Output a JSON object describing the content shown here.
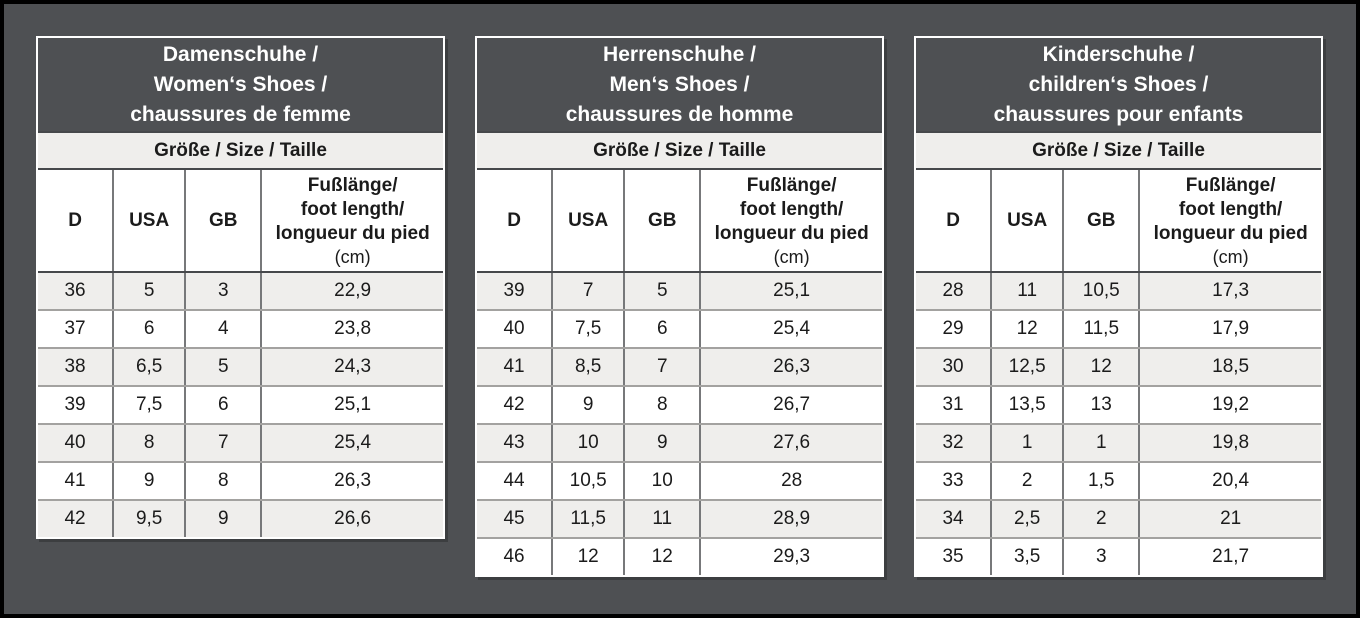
{
  "page": {
    "background_color": "#4e5053",
    "frame_color": "#000000",
    "light_row_color": "#efeeec",
    "white_row_color": "#ffffff",
    "title_text_color": "#ffffff",
    "body_text_color": "#1b1b1b"
  },
  "tables": [
    {
      "id": "women",
      "title_lines": [
        "Damenschuhe /",
        "Women‘s Shoes /",
        "chaussures de femme"
      ],
      "subtitle": "Größe / Size / Taille",
      "col_d": "D",
      "col_usa": "USA",
      "col_gb": "GB",
      "foot_lines": [
        "Fußlänge/",
        "foot length/",
        "longueur du pied"
      ],
      "foot_unit": "(cm)",
      "rows": [
        [
          "36",
          "5",
          "3",
          "22,9"
        ],
        [
          "37",
          "6",
          "4",
          "23,8"
        ],
        [
          "38",
          "6,5",
          "5",
          "24,3"
        ],
        [
          "39",
          "7,5",
          "6",
          "25,1"
        ],
        [
          "40",
          "8",
          "7",
          "25,4"
        ],
        [
          "41",
          "9",
          "8",
          "26,3"
        ],
        [
          "42",
          "9,5",
          "9",
          "26,6"
        ]
      ]
    },
    {
      "id": "men",
      "title_lines": [
        "Herrenschuhe /",
        "Men‘s Shoes /",
        "chaussures de homme"
      ],
      "subtitle": "Größe / Size / Taille",
      "col_d": "D",
      "col_usa": "USA",
      "col_gb": "GB",
      "foot_lines": [
        "Fußlänge/",
        "foot length/",
        "longueur du pied"
      ],
      "foot_unit": "(cm)",
      "rows": [
        [
          "39",
          "7",
          "5",
          "25,1"
        ],
        [
          "40",
          "7,5",
          "6",
          "25,4"
        ],
        [
          "41",
          "8,5",
          "7",
          "26,3"
        ],
        [
          "42",
          "9",
          "8",
          "26,7"
        ],
        [
          "43",
          "10",
          "9",
          "27,6"
        ],
        [
          "44",
          "10,5",
          "10",
          "28"
        ],
        [
          "45",
          "11,5",
          "11",
          "28,9"
        ],
        [
          "46",
          "12",
          "12",
          "29,3"
        ]
      ]
    },
    {
      "id": "children",
      "title_lines": [
        "Kinderschuhe /",
        "children‘s Shoes /",
        "chaussures pour enfants"
      ],
      "subtitle": "Größe / Size / Taille",
      "col_d": "D",
      "col_usa": "USA",
      "col_gb": "GB",
      "foot_lines": [
        "Fußlänge/",
        "foot length/",
        "longueur du pied"
      ],
      "foot_unit": "(cm)",
      "rows": [
        [
          "28",
          "11",
          "10,5",
          "17,3"
        ],
        [
          "29",
          "12",
          "11,5",
          "17,9"
        ],
        [
          "30",
          "12,5",
          "12",
          "18,5"
        ],
        [
          "31",
          "13,5",
          "13",
          "19,2"
        ],
        [
          "32",
          "1",
          "1",
          "19,8"
        ],
        [
          "33",
          "2",
          "1,5",
          "20,4"
        ],
        [
          "34",
          "2,5",
          "2",
          "21"
        ],
        [
          "35",
          "3,5",
          "3",
          "21,7"
        ]
      ]
    }
  ]
}
